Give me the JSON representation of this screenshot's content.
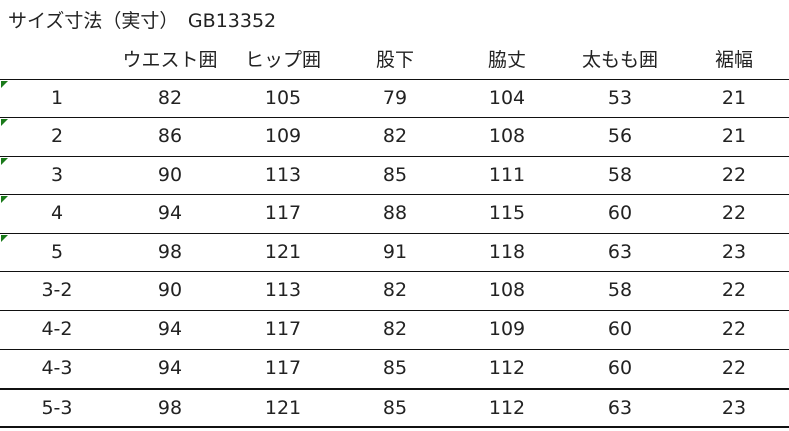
{
  "title": "サイズ寸法（実寸）　GB13352",
  "headers": [
    "",
    "ウエスト囲",
    "ヒップ囲",
    "股下",
    "脇丈",
    "太もも囲",
    "裾幅"
  ],
  "rows": [
    {
      "cells": [
        "1",
        "82",
        "105",
        "79",
        "104",
        "53",
        "21"
      ],
      "flag": true
    },
    {
      "cells": [
        "2",
        "86",
        "109",
        "82",
        "108",
        "56",
        "21"
      ],
      "flag": true
    },
    {
      "cells": [
        "3",
        "90",
        "113",
        "85",
        "111",
        "58",
        "22"
      ],
      "flag": true
    },
    {
      "cells": [
        "4",
        "94",
        "117",
        "88",
        "115",
        "60",
        "22"
      ],
      "flag": true
    },
    {
      "cells": [
        "5",
        "98",
        "121",
        "91",
        "118",
        "63",
        "23"
      ],
      "flag": true
    },
    {
      "cells": [
        "3-2",
        "90",
        "113",
        "82",
        "108",
        "58",
        "22"
      ],
      "flag": false
    },
    {
      "cells": [
        "4-2",
        "94",
        "117",
        "82",
        "109",
        "60",
        "22"
      ],
      "flag": false
    },
    {
      "cells": [
        "4-3",
        "94",
        "117",
        "85",
        "112",
        "60",
        "22"
      ],
      "flag": false
    },
    {
      "cells": [
        "5-3",
        "98",
        "121",
        "85",
        "112",
        "63",
        "23"
      ],
      "flag": false
    }
  ],
  "colors": {
    "flag": "#1a7a1a",
    "border": "#111111"
  }
}
